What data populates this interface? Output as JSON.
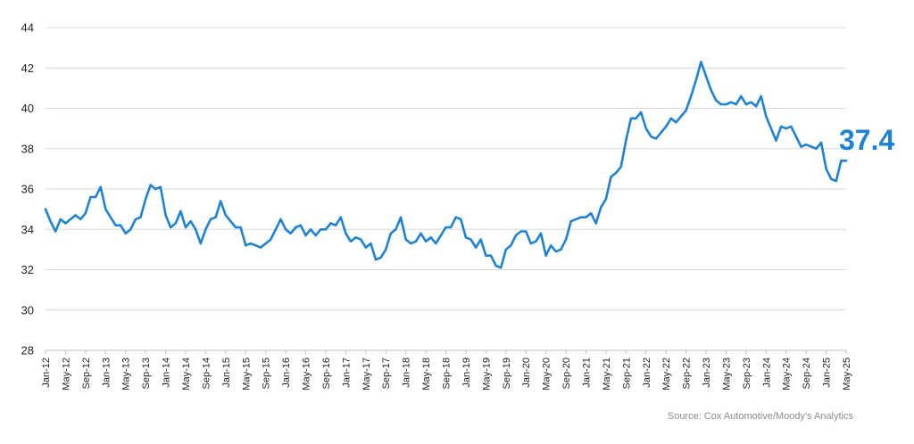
{
  "chart_data": {
    "type": "line",
    "title": "",
    "xlabel": "",
    "ylabel": "",
    "ylim": [
      28,
      44
    ],
    "yticks": [
      28,
      30,
      32,
      34,
      36,
      38,
      40,
      42,
      44
    ],
    "grid": true,
    "line_color": "#1f82d2",
    "x_tick_labels": [
      "Jan-12",
      "May-12",
      "Sep-12",
      "Jan-13",
      "May-13",
      "Sep-13",
      "Jan-14",
      "May-14",
      "Sep-14",
      "Jan-15",
      "May-15",
      "Sep-15",
      "Jan-16",
      "May-16",
      "Sep-16",
      "Jan-17",
      "May-17",
      "Sep-17",
      "Jan-18",
      "May-18",
      "Sep-18",
      "Jan-19",
      "May-19",
      "Sep-19",
      "Jan-20",
      "May-20",
      "Sep-20",
      "Jan-21",
      "May-21",
      "Sep-21",
      "Jan-22",
      "May-22",
      "Sep-22",
      "Jan-23",
      "May-23",
      "Sep-23",
      "Jan-24",
      "May-24",
      "Sep-24",
      "Jan-25",
      "May-25"
    ],
    "x_start": "Jan-12",
    "x_end": "May-25",
    "series": [
      {
        "values": [
          35.0,
          34.4,
          33.9,
          34.5,
          34.3,
          34.5,
          34.7,
          34.5,
          34.8,
          35.6,
          35.6,
          36.1,
          35.0,
          34.6,
          34.2,
          34.2,
          33.8,
          34.0,
          34.5,
          34.6,
          35.5,
          36.2,
          36.0,
          36.1,
          34.7,
          34.1,
          34.3,
          34.9,
          34.1,
          34.4,
          34.0,
          33.3,
          34.0,
          34.5,
          34.6,
          35.4,
          34.7,
          34.4,
          34.1,
          34.1,
          33.2,
          33.3,
          33.2,
          33.1,
          33.3,
          33.5,
          34.0,
          34.5,
          34.0,
          33.8,
          34.1,
          34.2,
          33.7,
          34.0,
          33.7,
          34.0,
          34.0,
          34.3,
          34.2,
          34.6,
          33.8,
          33.4,
          33.6,
          33.5,
          33.1,
          33.3,
          32.5,
          32.6,
          33.0,
          33.8,
          34.0,
          34.6,
          33.5,
          33.3,
          33.4,
          33.8,
          33.4,
          33.6,
          33.3,
          33.7,
          34.1,
          34.1,
          34.6,
          34.5,
          33.6,
          33.5,
          33.1,
          33.5,
          32.7,
          32.7,
          32.2,
          32.1,
          33.0,
          33.2,
          33.7,
          33.9,
          33.9,
          33.3,
          33.4,
          33.8,
          32.7,
          33.2,
          32.9,
          33.0,
          33.5,
          34.4,
          34.5,
          34.6,
          34.6,
          34.8,
          34.3,
          35.1,
          35.5,
          36.6,
          36.8,
          37.1,
          38.4,
          39.5,
          39.5,
          39.8,
          39.0,
          38.6,
          38.5,
          38.8,
          39.1,
          39.5,
          39.3,
          39.6,
          39.9,
          40.6,
          41.4,
          42.3,
          41.6,
          40.9,
          40.4,
          40.2,
          40.2,
          40.3,
          40.2,
          40.6,
          40.2,
          40.3,
          40.1,
          40.6,
          39.6,
          39.0,
          38.4,
          39.1,
          39.0,
          39.1,
          38.6,
          38.1,
          38.2,
          38.1,
          38.0,
          38.3,
          37.0,
          36.5,
          36.4,
          37.4,
          37.4
        ]
      }
    ],
    "end_label": "37.4",
    "source": "Source: Cox Automotive/Moody's Analytics"
  }
}
